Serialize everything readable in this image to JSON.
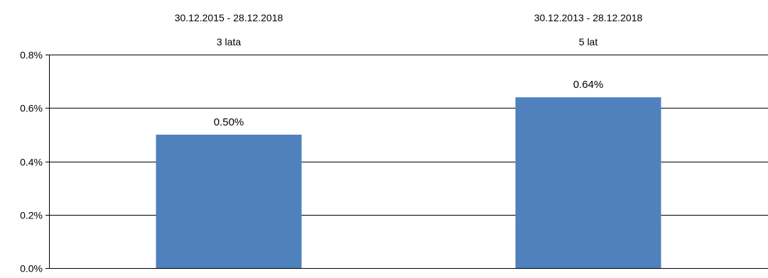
{
  "chart_data": {
    "type": "bar",
    "categories": [
      {
        "period": "30.12.2015 - 28.12.2018",
        "label": "3 lata"
      },
      {
        "period": "30.12.2013 - 28.12.2018",
        "label": "5 lat"
      }
    ],
    "values": [
      0.5,
      0.64
    ],
    "data_labels": [
      "0.50%",
      "0.64%"
    ],
    "title": "",
    "xlabel": "",
    "ylabel": "",
    "ylim": [
      0,
      0.8
    ],
    "yticks": [
      0.0,
      0.2,
      0.4,
      0.6,
      0.8
    ],
    "ytick_labels": [
      "0.0%",
      "0.2%",
      "0.4%",
      "0.6%",
      "0.8%"
    ],
    "grid": true,
    "legend": "none",
    "bar_color": "#4f81bd",
    "grid_color": "#000000"
  }
}
